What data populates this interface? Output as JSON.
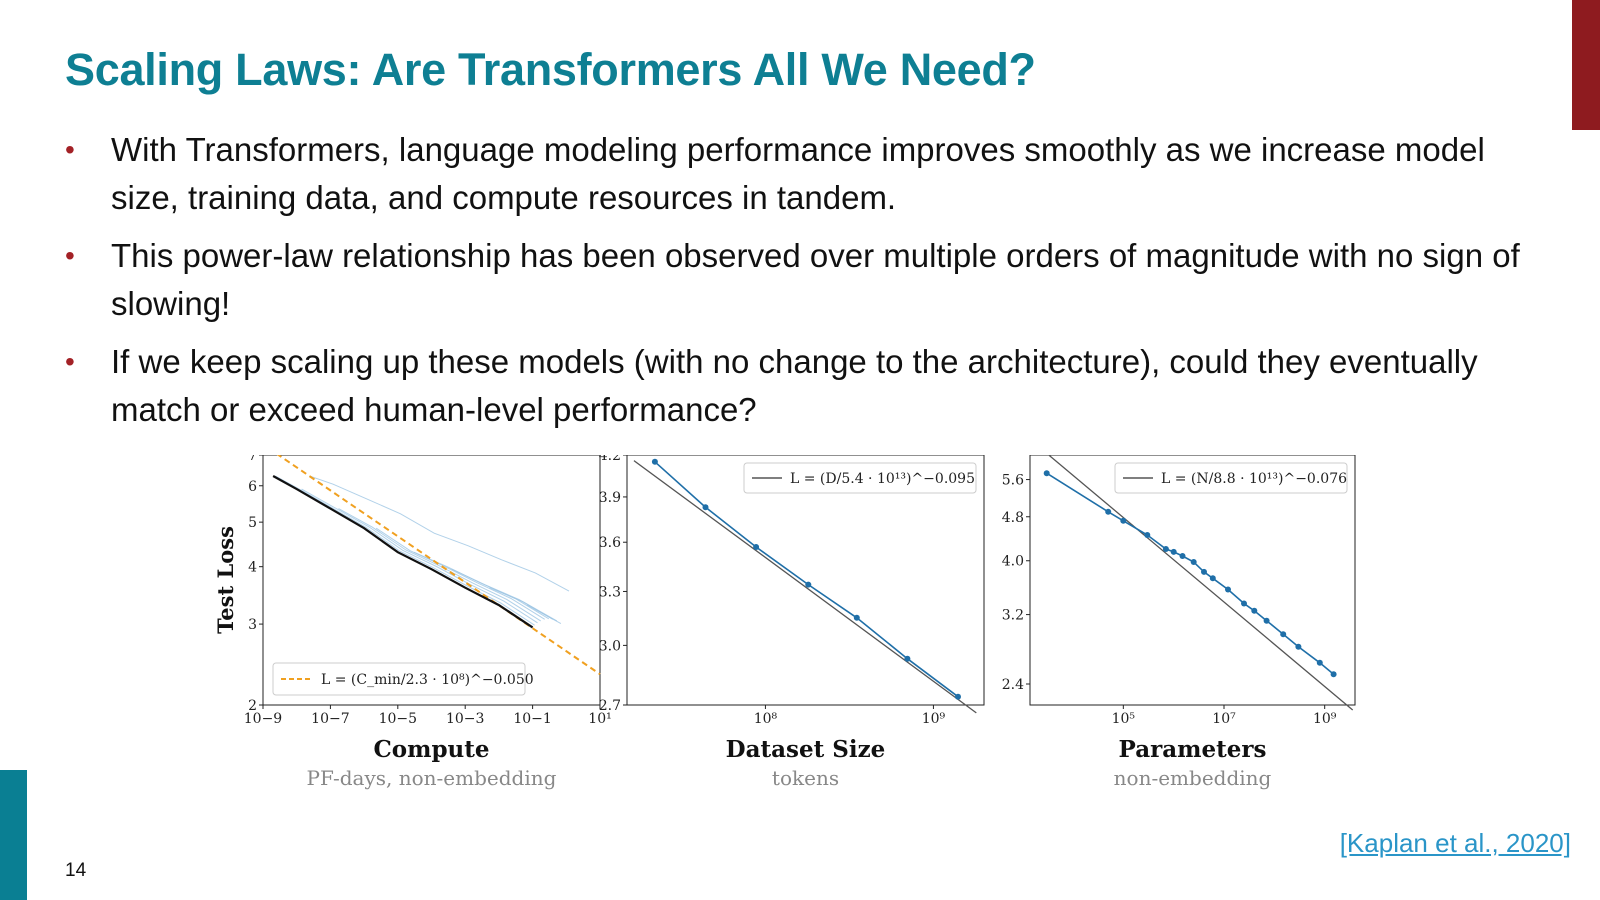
{
  "slide": {
    "title": "Scaling Laws: Are Transformers All We Need?",
    "bullets": [
      "With Transformers, language modeling performance improves smoothly as we increase model size, training data, and compute resources in tandem.",
      "This power-law relationship has been observed over multiple orders of magnitude with no sign of slowing!",
      "If we keep scaling up these models (with no change to the architecture), could they eventually match or exceed human-level performance?"
    ],
    "citation": "[Kaplan et al., 2020]",
    "page_number": "14"
  },
  "colors": {
    "title": "#0e7f93",
    "bullet": "#a32126",
    "line": "#1f6fa8",
    "fit_orange": "#f0a020",
    "curves": "#9ec5e4"
  },
  "chart_data": [
    {
      "type": "line",
      "scale": "log-log",
      "ylabel": "Test Loss",
      "xlabel": "Compute",
      "xsublabel": "PF-days, non-embedding",
      "xlim": [
        1e-09,
        10
      ],
      "ylim": [
        2,
        7
      ],
      "xticks": [
        "10−9",
        "10−7",
        "10−5",
        "10−3",
        "10−1",
        "10¹"
      ],
      "xtick_values": [
        1e-09,
        1e-07,
        1e-05,
        0.001,
        0.1,
        10
      ],
      "yticks": [
        "7",
        "6",
        "5",
        "4",
        "3",
        "2"
      ],
      "ytick_values": [
        7,
        6,
        5,
        4,
        3,
        2
      ],
      "legend": "L = (C_min/2.3 · 10⁸)^−0.050",
      "legend_position": "bottom-left",
      "fit": {
        "a": 230000000.0,
        "exponent": -0.05
      },
      "frontier": {
        "x": [
          2e-09,
          1e-08,
          1e-07,
          1e-06,
          1e-05,
          0.0001,
          0.001,
          0.01,
          0.1
        ],
        "y": [
          6.3,
          5.9,
          5.35,
          4.85,
          4.3,
          3.95,
          3.6,
          3.3,
          2.95
        ]
      },
      "curves_note": "many light blue training curves"
    },
    {
      "type": "line",
      "scale": "log-log",
      "xlabel": "Dataset Size",
      "xsublabel": "tokens",
      "xlim": [
        15000000.0,
        2000000000.0
      ],
      "ylim": [
        2.7,
        4.2
      ],
      "xticks": [
        "10⁸",
        "10⁹"
      ],
      "xtick_values": [
        100000000.0,
        1000000000.0
      ],
      "yticks": [
        "4.2",
        "3.9",
        "3.6",
        "3.3",
        "3.0",
        "2.7"
      ],
      "ytick_values": [
        4.2,
        3.9,
        3.6,
        3.3,
        3.0,
        2.7
      ],
      "legend": "L = (D/5.4 · 10¹³)^−0.095",
      "legend_position": "top-right",
      "fit": {
        "a": 54000000000000.0,
        "exponent": -0.095
      },
      "x": [
        22000000.0,
        44000000.0,
        88000000.0,
        180000000.0,
        350000000.0,
        700000000.0,
        1400000000.0
      ],
      "y": [
        4.15,
        3.83,
        3.57,
        3.34,
        3.15,
        2.93,
        2.74
      ]
    },
    {
      "type": "line",
      "scale": "log-log",
      "xlabel": "Parameters",
      "xsublabel": "non-embedding",
      "xlim": [
        1400.0,
        4000000000.0
      ],
      "ylim": [
        2.2,
        6.2
      ],
      "xticks": [
        "10⁵",
        "10⁷",
        "10⁹"
      ],
      "xtick_values": [
        100000.0,
        10000000.0,
        1000000000.0
      ],
      "yticks": [
        "5.6",
        "4.8",
        "4.0",
        "3.2",
        "2.4"
      ],
      "ytick_values": [
        5.6,
        4.8,
        4.0,
        3.2,
        2.4
      ],
      "legend": "L = (N/8.8 · 10¹³)^−0.076",
      "legend_position": "top-right",
      "fit": {
        "a": 88000000000000.0,
        "exponent": -0.076
      },
      "x": [
        3000.0,
        50000.0,
        100000.0,
        300000.0,
        700000.0,
        1000000.0,
        1500000.0,
        2500000.0,
        4000000.0,
        6000000.0,
        12000000.0,
        25000000.0,
        40000000.0,
        70000000.0,
        150000000.0,
        300000000.0,
        800000000.0,
        1500000000.0
      ],
      "y": [
        5.75,
        4.9,
        4.72,
        4.45,
        4.2,
        4.15,
        4.08,
        3.98,
        3.82,
        3.72,
        3.55,
        3.35,
        3.25,
        3.12,
        2.95,
        2.8,
        2.62,
        2.5
      ]
    }
  ]
}
